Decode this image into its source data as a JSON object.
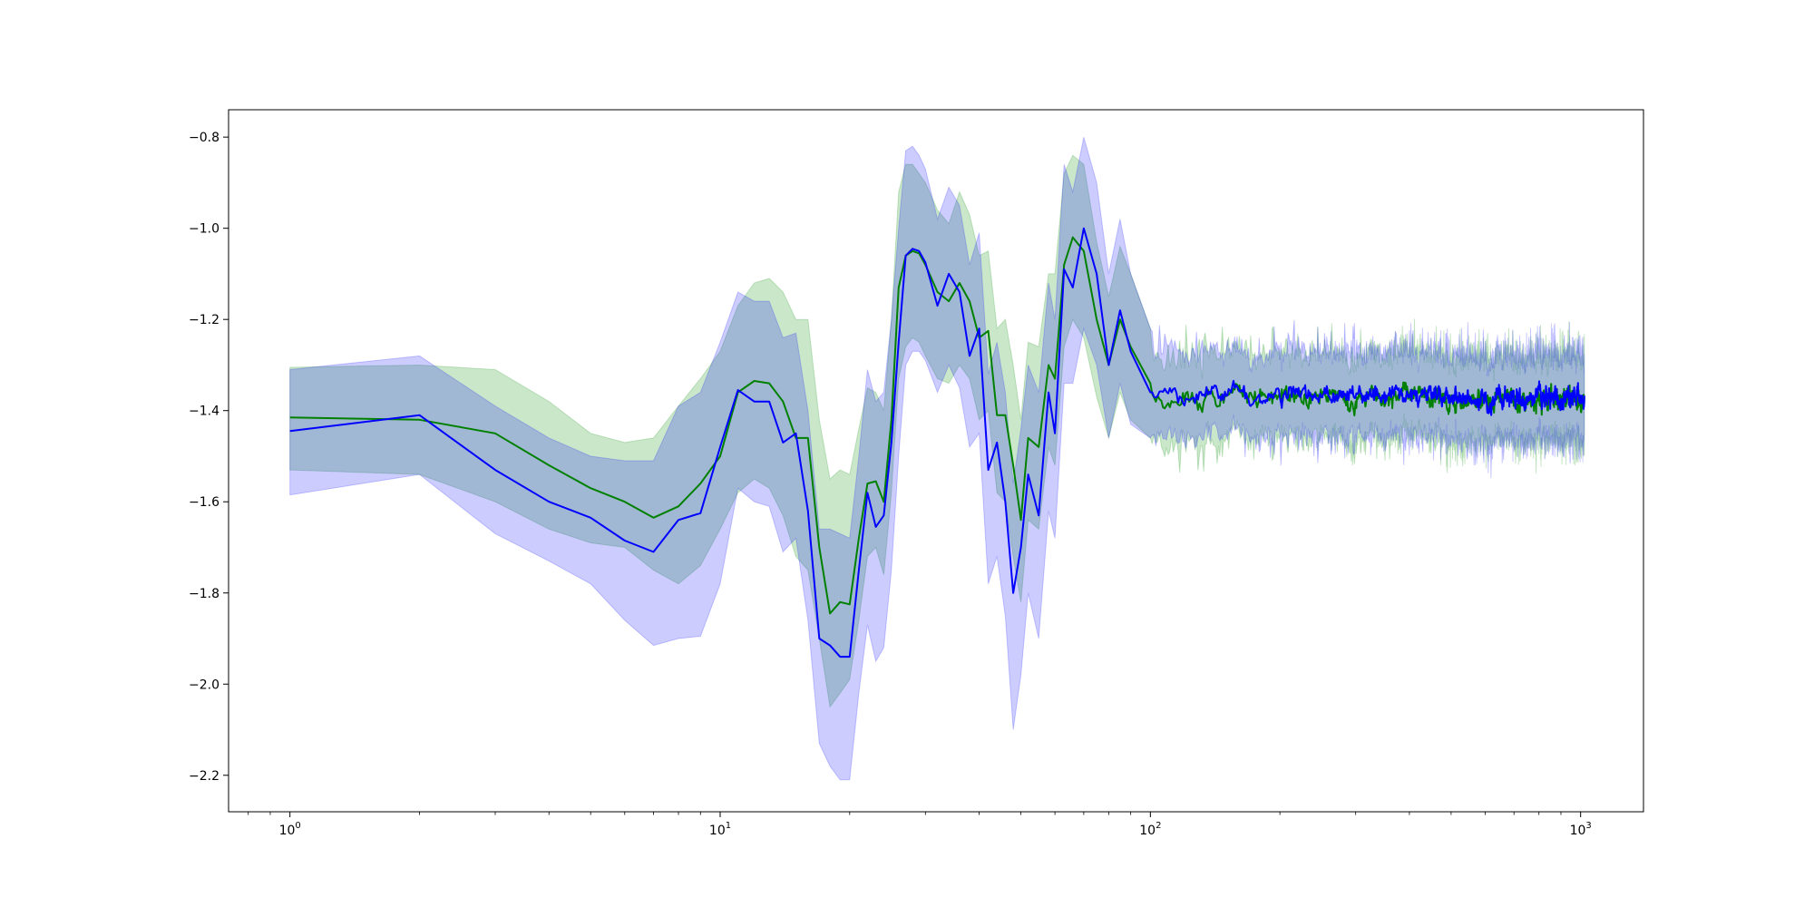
{
  "chart_data": {
    "type": "line",
    "title": "",
    "xlabel": "",
    "ylabel": "",
    "xscale": "log",
    "xlim": [
      0.72,
      1400
    ],
    "ylim": [
      -2.28,
      -0.74
    ],
    "grid": false,
    "legend": "none",
    "y_ticks": [
      {
        "value": -0.8,
        "label": "−0.8"
      },
      {
        "value": -1.0,
        "label": "−1.0"
      },
      {
        "value": -1.2,
        "label": "−1.2"
      },
      {
        "value": -1.4,
        "label": "−1.4"
      },
      {
        "value": -1.6,
        "label": "−1.6"
      },
      {
        "value": -1.8,
        "label": "−1.8"
      },
      {
        "value": -2.0,
        "label": "−2.0"
      },
      {
        "value": -2.2,
        "label": "−2.2"
      }
    ],
    "x_ticks": [
      {
        "value": 1,
        "base": "10",
        "exp": "0"
      },
      {
        "value": 10,
        "base": "10",
        "exp": "1"
      },
      {
        "value": 100,
        "base": "10",
        "exp": "2"
      },
      {
        "value": 1000,
        "base": "10",
        "exp": "3"
      }
    ],
    "series": [
      {
        "color": "#008000",
        "band_color": "#2ca02c",
        "band_opacity": 0.25,
        "x": [
          1,
          2,
          3,
          4,
          5,
          6,
          7,
          8,
          9,
          10,
          11,
          12,
          13,
          14,
          15,
          16,
          17,
          18,
          19,
          20,
          21,
          22,
          23,
          24,
          25,
          26,
          27,
          28,
          29,
          30,
          32,
          34,
          36,
          38,
          40,
          42,
          44,
          46,
          48,
          50,
          52,
          55,
          58,
          60,
          63,
          66,
          70,
          75,
          80,
          85,
          90,
          100
        ],
        "y": [
          -1.415,
          -1.42,
          -1.45,
          -1.52,
          -1.57,
          -1.6,
          -1.635,
          -1.61,
          -1.56,
          -1.5,
          -1.36,
          -1.335,
          -1.34,
          -1.38,
          -1.46,
          -1.46,
          -1.7,
          -1.845,
          -1.82,
          -1.825,
          -1.68,
          -1.56,
          -1.555,
          -1.6,
          -1.42,
          -1.13,
          -1.06,
          -1.05,
          -1.055,
          -1.08,
          -1.14,
          -1.16,
          -1.12,
          -1.16,
          -1.24,
          -1.225,
          -1.41,
          -1.41,
          -1.52,
          -1.64,
          -1.46,
          -1.48,
          -1.3,
          -1.33,
          -1.08,
          -1.02,
          -1.05,
          -1.2,
          -1.3,
          -1.2,
          -1.26,
          -1.34
        ],
        "lower": [
          -1.53,
          -1.54,
          -1.6,
          -1.66,
          -1.69,
          -1.7,
          -1.75,
          -1.78,
          -1.74,
          -1.66,
          -1.58,
          -1.55,
          -1.57,
          -1.63,
          -1.72,
          -1.75,
          -1.9,
          -2.05,
          -2.02,
          -1.99,
          -1.86,
          -1.72,
          -1.7,
          -1.76,
          -1.58,
          -1.33,
          -1.26,
          -1.24,
          -1.25,
          -1.28,
          -1.33,
          -1.34,
          -1.3,
          -1.33,
          -1.42,
          -1.4,
          -1.58,
          -1.6,
          -1.72,
          -1.82,
          -1.64,
          -1.66,
          -1.48,
          -1.52,
          -1.26,
          -1.2,
          -1.24,
          -1.37,
          -1.46,
          -1.36,
          -1.42,
          -1.46
        ],
        "upper": [
          -1.305,
          -1.3,
          -1.31,
          -1.38,
          -1.45,
          -1.47,
          -1.46,
          -1.39,
          -1.33,
          -1.27,
          -1.17,
          -1.12,
          -1.11,
          -1.14,
          -1.2,
          -1.2,
          -1.42,
          -1.55,
          -1.53,
          -1.54,
          -1.44,
          -1.35,
          -1.36,
          -1.4,
          -1.2,
          -0.92,
          -0.86,
          -0.86,
          -0.88,
          -0.9,
          -0.96,
          -0.99,
          -0.92,
          -0.97,
          -1.06,
          -1.05,
          -1.22,
          -1.2,
          -1.3,
          -1.42,
          -1.25,
          -1.26,
          -1.1,
          -1.1,
          -0.88,
          -0.84,
          -0.86,
          -1.03,
          -1.15,
          -1.04,
          -1.1,
          -1.22
        ]
      },
      {
        "color": "#0000ff",
        "band_color": "#0000ff",
        "band_opacity": 0.2,
        "x": [
          1,
          2,
          3,
          4,
          5,
          6,
          7,
          8,
          9,
          10,
          11,
          12,
          13,
          14,
          15,
          16,
          17,
          18,
          19,
          20,
          21,
          22,
          23,
          24,
          25,
          26,
          27,
          28,
          29,
          30,
          32,
          34,
          36,
          38,
          40,
          42,
          44,
          46,
          48,
          50,
          52,
          55,
          58,
          60,
          63,
          66,
          70,
          75,
          80,
          85,
          90,
          100
        ],
        "y": [
          -1.445,
          -1.41,
          -1.53,
          -1.6,
          -1.635,
          -1.685,
          -1.71,
          -1.64,
          -1.625,
          -1.48,
          -1.355,
          -1.38,
          -1.38,
          -1.47,
          -1.45,
          -1.62,
          -1.9,
          -1.915,
          -1.94,
          -1.94,
          -1.75,
          -1.58,
          -1.655,
          -1.63,
          -1.47,
          -1.25,
          -1.06,
          -1.045,
          -1.05,
          -1.075,
          -1.17,
          -1.1,
          -1.14,
          -1.28,
          -1.22,
          -1.53,
          -1.47,
          -1.6,
          -1.8,
          -1.7,
          -1.54,
          -1.63,
          -1.36,
          -1.45,
          -1.09,
          -1.13,
          -1.0,
          -1.1,
          -1.3,
          -1.18,
          -1.27,
          -1.36
        ],
        "lower": [
          -1.585,
          -1.54,
          -1.67,
          -1.73,
          -1.78,
          -1.86,
          -1.915,
          -1.9,
          -1.895,
          -1.78,
          -1.57,
          -1.6,
          -1.61,
          -1.71,
          -1.68,
          -1.86,
          -2.13,
          -2.18,
          -2.21,
          -2.21,
          -2.02,
          -1.87,
          -1.95,
          -1.92,
          -1.75,
          -1.5,
          -1.3,
          -1.27,
          -1.27,
          -1.29,
          -1.36,
          -1.3,
          -1.35,
          -1.48,
          -1.45,
          -1.78,
          -1.72,
          -1.85,
          -2.1,
          -1.98,
          -1.8,
          -1.9,
          -1.62,
          -1.68,
          -1.34,
          -1.34,
          -1.22,
          -1.3,
          -1.46,
          -1.34,
          -1.43,
          -1.46
        ],
        "upper": [
          -1.31,
          -1.28,
          -1.39,
          -1.46,
          -1.5,
          -1.51,
          -1.51,
          -1.39,
          -1.36,
          -1.25,
          -1.14,
          -1.16,
          -1.16,
          -1.24,
          -1.23,
          -1.4,
          -1.66,
          -1.66,
          -1.67,
          -1.68,
          -1.5,
          -1.31,
          -1.38,
          -1.36,
          -1.2,
          -1.0,
          -0.83,
          -0.82,
          -0.84,
          -0.87,
          -0.98,
          -0.91,
          -0.95,
          -1.08,
          -1.01,
          -1.32,
          -1.25,
          -1.36,
          -1.56,
          -1.44,
          -1.3,
          -1.36,
          -1.12,
          -1.2,
          -0.86,
          -0.92,
          -0.8,
          -0.9,
          -1.1,
          -0.98,
          -1.1,
          -1.22
        ]
      }
    ],
    "noisy_tail": {
      "x_range": [
        100,
        1020
      ],
      "center": -1.365,
      "band_half_width": 0.08,
      "band_half_width_max": 0.14
    }
  }
}
